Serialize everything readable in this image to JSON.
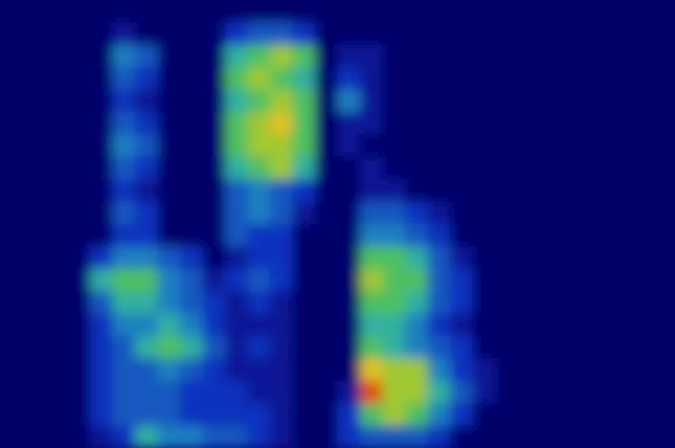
{
  "chart_data": {
    "type": "heatmap",
    "tick_labels": false,
    "zlim": [
      0,
      10
    ],
    "cells": [
      [
        0,
        0,
        0,
        0,
        0,
        0,
        0,
        0,
        0,
        0,
        0,
        0,
        0,
        0,
        0,
        0,
        0,
        0,
        0,
        0,
        0,
        0,
        0,
        0,
        0,
        0,
        0,
        0,
        0,
        0
      ],
      [
        0,
        0,
        0,
        0,
        0,
        1,
        0,
        0,
        0,
        0,
        2,
        3,
        3,
        2,
        0,
        0,
        0,
        0,
        0,
        0,
        0,
        0,
        0,
        0,
        0,
        0,
        0,
        0,
        0,
        0
      ],
      [
        0,
        0,
        0,
        0,
        0,
        4,
        3,
        0,
        0,
        0,
        5,
        6,
        7,
        6,
        0,
        1,
        1,
        0,
        0,
        0,
        0,
        0,
        0,
        0,
        0,
        0,
        0,
        0,
        0,
        0
      ],
      [
        0,
        0,
        0,
        0,
        0,
        3,
        2,
        0,
        0,
        0,
        6,
        7,
        6,
        5,
        0,
        2,
        1,
        0,
        0,
        0,
        0,
        0,
        0,
        0,
        0,
        0,
        0,
        0,
        0,
        0
      ],
      [
        0,
        0,
        0,
        0,
        0,
        2,
        1,
        0,
        0,
        0,
        5,
        6,
        7,
        6,
        0,
        4,
        1,
        0,
        0,
        0,
        0,
        0,
        0,
        0,
        0,
        0,
        0,
        0,
        0,
        0
      ],
      [
        0,
        0,
        0,
        0,
        0,
        3,
        2,
        0,
        0,
        0,
        6,
        7,
        8,
        6,
        0,
        1,
        1,
        0,
        0,
        0,
        0,
        0,
        0,
        0,
        0,
        0,
        0,
        0,
        0,
        0
      ],
      [
        0,
        0,
        0,
        0,
        0,
        4,
        3,
        0,
        0,
        0,
        6,
        7,
        7,
        6,
        0,
        1,
        0,
        0,
        0,
        0,
        0,
        0,
        0,
        0,
        0,
        0,
        0,
        0,
        0,
        0
      ],
      [
        0,
        0,
        0,
        0,
        0,
        3,
        2,
        0,
        0,
        0,
        5,
        6,
        7,
        5,
        0,
        0,
        1,
        0,
        0,
        0,
        0,
        0,
        0,
        0,
        0,
        0,
        0,
        0,
        0,
        0
      ],
      [
        0,
        0,
        0,
        0,
        0,
        2,
        1,
        0,
        0,
        0,
        3,
        4,
        3,
        2,
        0,
        0,
        1,
        1,
        0,
        0,
        0,
        0,
        0,
        0,
        0,
        0,
        0,
        0,
        0,
        0
      ],
      [
        0,
        0,
        0,
        0,
        0,
        3,
        2,
        0,
        0,
        0,
        3,
        4,
        3,
        1,
        0,
        0,
        3,
        3,
        2,
        1,
        0,
        0,
        0,
        0,
        0,
        0,
        0,
        0,
        0,
        0
      ],
      [
        0,
        0,
        0,
        0,
        0,
        2,
        2,
        0,
        0,
        0,
        3,
        2,
        2,
        0,
        0,
        0,
        4,
        4,
        3,
        2,
        0,
        0,
        0,
        0,
        0,
        0,
        0,
        0,
        0,
        0
      ],
      [
        0,
        0,
        0,
        0,
        2,
        4,
        4,
        3,
        2,
        0,
        1,
        2,
        2,
        0,
        0,
        0,
        6,
        6,
        5,
        3,
        1,
        0,
        0,
        0,
        0,
        0,
        0,
        0,
        0,
        0
      ],
      [
        0,
        0,
        0,
        0,
        5,
        6,
        6,
        4,
        3,
        1,
        2,
        3,
        2,
        0,
        0,
        0,
        7,
        6,
        6,
        3,
        2,
        0,
        0,
        0,
        0,
        0,
        0,
        0,
        0,
        0
      ],
      [
        0,
        0,
        0,
        0,
        3,
        5,
        5,
        4,
        3,
        2,
        1,
        2,
        1,
        0,
        0,
        0,
        6,
        6,
        5,
        3,
        2,
        0,
        0,
        0,
        0,
        0,
        0,
        0,
        0,
        0
      ],
      [
        0,
        0,
        0,
        0,
        2,
        4,
        4,
        5,
        4,
        2,
        1,
        1,
        1,
        0,
        0,
        0,
        5,
        5,
        4,
        2,
        1,
        0,
        0,
        0,
        0,
        0,
        0,
        0,
        0,
        0
      ],
      [
        0,
        0,
        0,
        0,
        2,
        3,
        5,
        6,
        5,
        3,
        1,
        2,
        1,
        0,
        0,
        0,
        6,
        5,
        4,
        3,
        2,
        0,
        0,
        0,
        0,
        0,
        0,
        0,
        0,
        0
      ],
      [
        0,
        0,
        0,
        0,
        2,
        3,
        3,
        4,
        3,
        2,
        1,
        1,
        1,
        0,
        0,
        0,
        8,
        7,
        7,
        4,
        2,
        1,
        0,
        0,
        0,
        0,
        0,
        0,
        0,
        0
      ],
      [
        0,
        0,
        0,
        0,
        2,
        3,
        3,
        3,
        2,
        2,
        2,
        1,
        1,
        0,
        0,
        1,
        9,
        7,
        7,
        5,
        3,
        1,
        0,
        0,
        0,
        0,
        0,
        0,
        0,
        0
      ],
      [
        0,
        0,
        0,
        0,
        2,
        3,
        3,
        3,
        2,
        2,
        2,
        2,
        1,
        0,
        0,
        2,
        6,
        7,
        6,
        4,
        2,
        0,
        0,
        0,
        0,
        0,
        0,
        0,
        0,
        0
      ],
      [
        0,
        0,
        0,
        0,
        1,
        2,
        5,
        4,
        4,
        3,
        3,
        2,
        1,
        0,
        0,
        2,
        3,
        3,
        3,
        2,
        0,
        0,
        0,
        0,
        0,
        0,
        0,
        0,
        0,
        0
      ]
    ]
  }
}
